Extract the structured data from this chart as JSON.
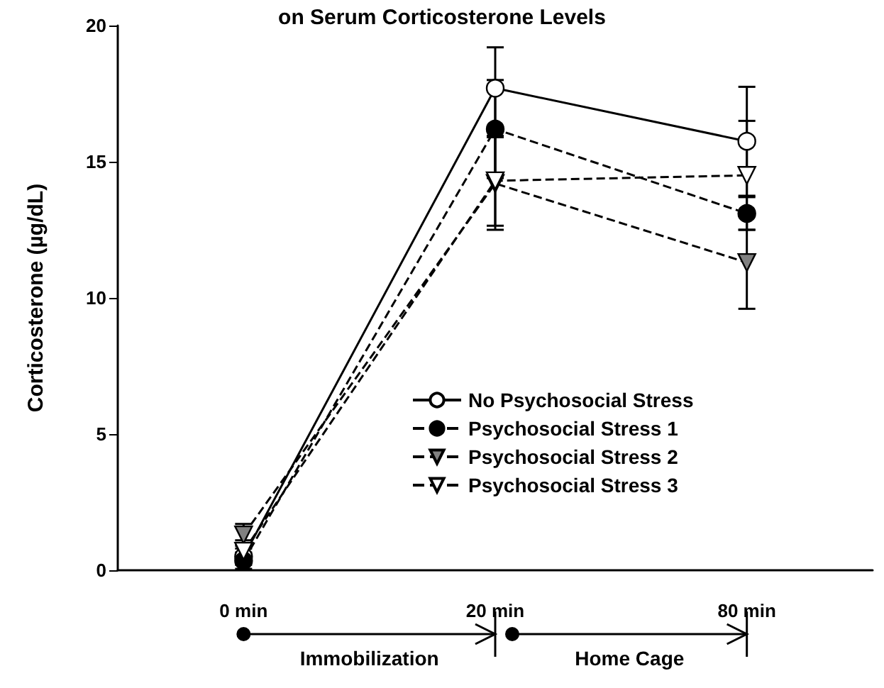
{
  "chart_data": {
    "type": "line",
    "title": "on Serum Corticosterone Levels",
    "ylabel": "Corticosterone (µg/dL)",
    "categories": [
      "0 min",
      "20 min",
      "80 min"
    ],
    "series": [
      {
        "name": "No Psychosocial Stress",
        "color": "#ffffff",
        "marker": "circle",
        "line_style": "solid",
        "values": [
          0.5,
          17.7,
          15.75
        ],
        "errors": [
          0.3,
          1.5,
          2.0
        ]
      },
      {
        "name": "Psychosocial Stress 1",
        "color": "#000000",
        "marker": "circle",
        "line_style": "dashed",
        "values": [
          0.35,
          16.2,
          13.1
        ],
        "errors": [
          0.3,
          1.8,
          0.6
        ]
      },
      {
        "name": "Psychosocial Stress 2",
        "color": "#808080",
        "marker": "triangle",
        "line_style": "dashed",
        "values": [
          1.3,
          14.2,
          11.3
        ],
        "errors": [
          0.4,
          1.7,
          1.7
        ]
      },
      {
        "name": "Psychosocial Stress 3",
        "color": "#ffffff",
        "marker": "triangle",
        "line_style": "dashed",
        "values": [
          0.7,
          14.3,
          14.5
        ],
        "errors": [
          0.4,
          1.65,
          2.0
        ]
      }
    ],
    "ylim": [
      0,
      20
    ],
    "yticks": [
      0,
      5,
      10,
      15,
      20
    ],
    "grid": false,
    "legend": "right",
    "annotations": [
      "Immobilization",
      "Home Cage"
    ]
  }
}
